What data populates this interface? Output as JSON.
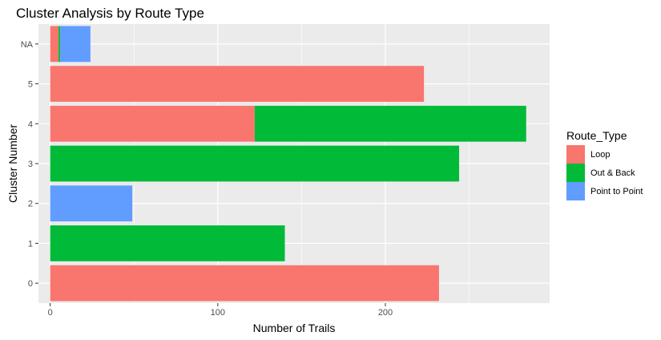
{
  "chart_data": {
    "type": "bar",
    "orientation": "horizontal",
    "stacked": true,
    "title": "Cluster Analysis by Route Type",
    "xlabel": "Number of Trails",
    "ylabel": "Cluster Number",
    "categories": [
      "0",
      "1",
      "2",
      "3",
      "4",
      "5",
      "NA"
    ],
    "xlim": [
      -7,
      298
    ],
    "x_ticks": [
      0,
      100,
      200
    ],
    "grid": true,
    "legend_title": "Route_Type",
    "legend_position": "right",
    "series": [
      {
        "name": "Loop",
        "color": "#F8766D",
        "values": [
          232,
          0,
          0,
          0,
          122,
          223,
          5
        ]
      },
      {
        "name": "Out & Back",
        "color": "#00BA38",
        "values": [
          0,
          140,
          0,
          244,
          162,
          0,
          1
        ]
      },
      {
        "name": "Point to Point",
        "color": "#619CFF",
        "values": [
          0,
          0,
          49,
          0,
          0,
          0,
          18
        ]
      }
    ]
  }
}
